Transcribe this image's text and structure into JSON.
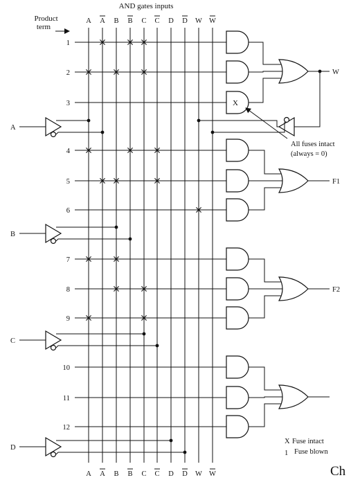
{
  "header": {
    "title": "AND gates inputs",
    "product_term_label": "Product\nterm"
  },
  "columns": [
    {
      "label": "A",
      "bar": false
    },
    {
      "label": "A",
      "bar": true
    },
    {
      "label": "B",
      "bar": false
    },
    {
      "label": "B",
      "bar": true
    },
    {
      "label": "C",
      "bar": false
    },
    {
      "label": "C",
      "bar": true
    },
    {
      "label": "D",
      "bar": false
    },
    {
      "label": "D",
      "bar": true
    },
    {
      "label": "W",
      "bar": false
    },
    {
      "label": "W",
      "bar": true
    }
  ],
  "inputs": [
    "A",
    "B",
    "C",
    "D"
  ],
  "terms": [
    "1",
    "2",
    "3",
    "4",
    "5",
    "6",
    "7",
    "8",
    "9",
    "10",
    "11",
    "12"
  ],
  "outputs": [
    "W",
    "F1",
    "F2",
    ""
  ],
  "gate3_mark": "X",
  "annotation": {
    "line1": "All fuses intact",
    "line2": "(always  =  0)"
  },
  "legend": {
    "intact_symbol": "X",
    "intact_label": "Fuse intact",
    "blown_symbol": "1",
    "blown_label": "Fuse blown"
  },
  "corner_text": "Ch",
  "fuses_intact": [
    {
      "term": 1,
      "cols": [
        1,
        3,
        4
      ]
    },
    {
      "term": 2,
      "cols": [
        0,
        2,
        4
      ]
    },
    {
      "term": 4,
      "cols": [
        0,
        3,
        5
      ]
    },
    {
      "term": 5,
      "cols": [
        1,
        2,
        5
      ]
    },
    {
      "term": 6,
      "cols": [
        8
      ]
    },
    {
      "term": 7,
      "cols": [
        0,
        2
      ]
    },
    {
      "term": 8,
      "cols": [
        2,
        4
      ]
    },
    {
      "term": 9,
      "cols": [
        0,
        4
      ]
    }
  ]
}
